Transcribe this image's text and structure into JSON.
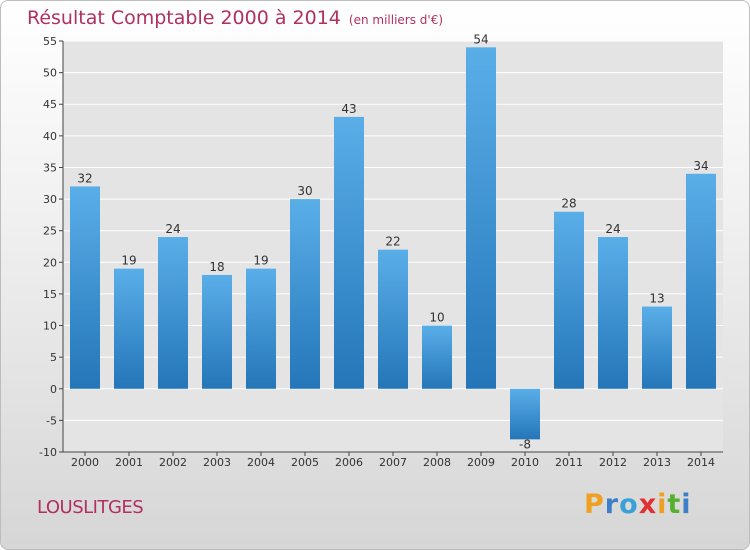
{
  "chart_data": {
    "type": "bar",
    "title": "Résultat Comptable 2000 à 2014",
    "unit": "(en milliers d'€)",
    "categories": [
      "2000",
      "2001",
      "2002",
      "2003",
      "2004",
      "2005",
      "2006",
      "2007",
      "2008",
      "2009",
      "2010",
      "2011",
      "2012",
      "2013",
      "2014"
    ],
    "values": [
      32,
      19,
      24,
      18,
      19,
      30,
      43,
      22,
      10,
      54,
      -8,
      28,
      24,
      13,
      34
    ],
    "ylim": [
      -10,
      55
    ],
    "yticks": [
      -10,
      -5,
      0,
      5,
      10,
      15,
      20,
      25,
      30,
      35,
      40,
      45,
      50,
      55
    ],
    "grid": true,
    "legend": "none",
    "xlabel": "",
    "ylabel": ""
  },
  "location": {
    "name": "LOUSLITGES"
  },
  "brand": {
    "letters": [
      "P",
      "r",
      "o",
      "x",
      "i",
      "t",
      "i"
    ],
    "colors": [
      "#f0a020",
      "#3a7fc8",
      "#3aa0d8",
      "#e03030",
      "#f0a020",
      "#58b030",
      "#3a7fc8"
    ]
  },
  "colors": {
    "title": "#b03060",
    "bar_light": "#5aaee8",
    "bar_dark": "#2476b8",
    "plot_bg": "#e4e4e4",
    "grid": "#ffffff",
    "axis": "#444444"
  }
}
